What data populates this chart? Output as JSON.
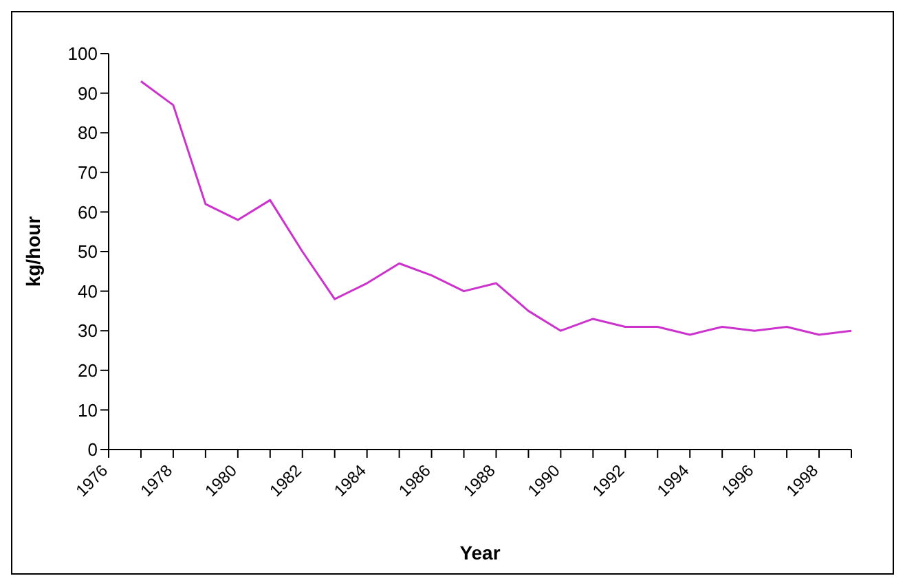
{
  "chart_data": {
    "type": "line",
    "xlabel": "Year",
    "ylabel": "kg/hour",
    "categories": [
      "1976",
      null,
      "1978",
      null,
      "1980",
      null,
      "1982",
      null,
      "1984",
      null,
      "1986",
      null,
      "1988",
      null,
      "1990",
      null,
      "1992",
      null,
      "1994",
      null,
      "1996",
      null,
      "1998",
      null
    ],
    "series": [
      {
        "color": "#cc33cc",
        "values": [
          null,
          93,
          87,
          62,
          58,
          63,
          50,
          38,
          42,
          47,
          44,
          40,
          42,
          35,
          30,
          33,
          31,
          31,
          29,
          31,
          30,
          31,
          29,
          30
        ]
      }
    ],
    "ylim": [
      0,
      100
    ],
    "yticks": [
      0,
      10,
      20,
      30,
      40,
      50,
      60,
      70,
      80,
      90,
      100
    ],
    "grid": false,
    "legend": false,
    "marker": "none",
    "line_style": "solid"
  }
}
